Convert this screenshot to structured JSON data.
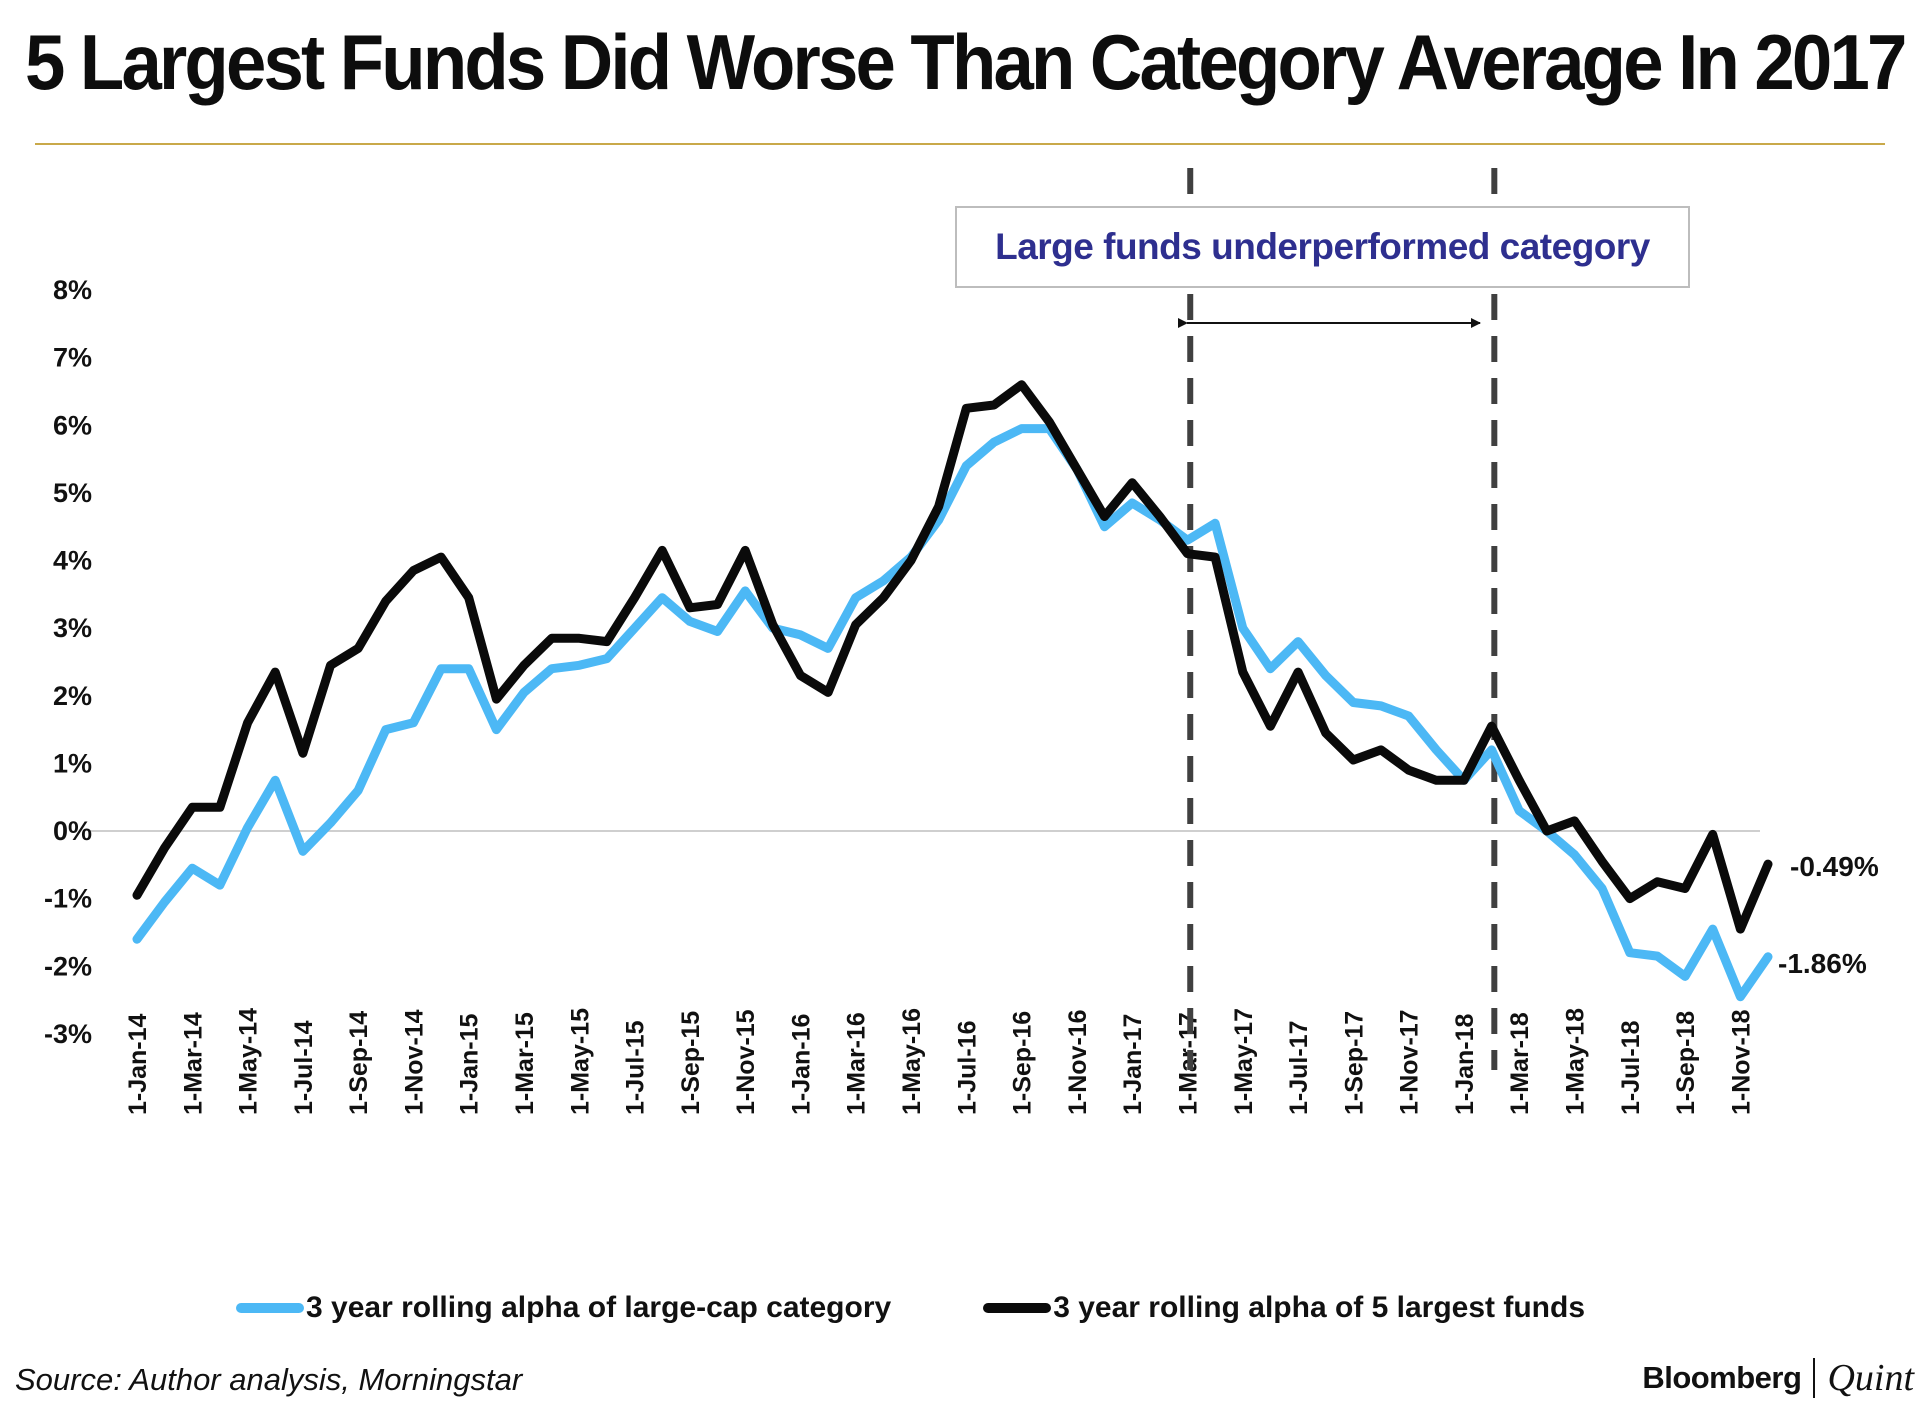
{
  "title": "5 Largest Funds Did Worse Than Category Average In 2017",
  "annotation": "Large funds underperformed category",
  "source": "Source: Author analysis, Morningstar",
  "brand": {
    "name": "Bloomberg",
    "partner": "Quint"
  },
  "colors": {
    "category": "#4cb8f5",
    "largest": "#0a0a0a",
    "annotation": "#2e2f8f",
    "rule": "#c9a94a",
    "divider": "#404040"
  },
  "chart_data": {
    "type": "line",
    "title": "5 Largest Funds Did Worse Than Category Average In 2017",
    "xlabel": "",
    "ylabel": "",
    "ylim": [
      -0.03,
      0.08
    ],
    "y_ticks": [
      "8%",
      "7%",
      "6%",
      "5%",
      "4%",
      "3%",
      "2%",
      "1%",
      "0%",
      "-1%",
      "-2%",
      "-3%"
    ],
    "y_tick_values": [
      0.08,
      0.07,
      0.06,
      0.05,
      0.04,
      0.03,
      0.02,
      0.01,
      0.0,
      -0.01,
      -0.02,
      -0.03
    ],
    "x_tick_labels": [
      "1-Jan-14",
      "1-Mar-14",
      "1-May-14",
      "1-Jul-14",
      "1-Sep-14",
      "1-Nov-14",
      "1-Jan-15",
      "1-Mar-15",
      "1-May-15",
      "1-Jul-15",
      "1-Sep-15",
      "1-Nov-15",
      "1-Jan-16",
      "1-Mar-16",
      "1-May-16",
      "1-Jul-16",
      "1-Sep-16",
      "1-Nov-16",
      "1-Jan-17",
      "1-Mar-17",
      "1-May-17",
      "1-Jul-17",
      "1-Sep-17",
      "1-Nov-17",
      "1-Jan-18",
      "1-Mar-18",
      "1-May-18",
      "1-Jul-18",
      "1-Sep-18",
      "1-Nov-18"
    ],
    "x_tick_month_index": [
      0,
      2,
      4,
      6,
      8,
      10,
      12,
      14,
      16,
      18,
      20,
      22,
      24,
      26,
      28,
      30,
      32,
      34,
      36,
      38,
      40,
      42,
      44,
      46,
      48,
      50,
      52,
      54,
      56,
      58
    ],
    "x_range_months": [
      0,
      59
    ],
    "x_month_labels": [
      "1-Jan-14",
      "1-Feb-14",
      "1-Mar-14",
      "1-Apr-14",
      "1-May-14",
      "1-Jun-14",
      "1-Jul-14",
      "1-Aug-14",
      "1-Sep-14",
      "1-Oct-14",
      "1-Nov-14",
      "1-Dec-14",
      "1-Jan-15",
      "1-Feb-15",
      "1-Mar-15",
      "1-Apr-15",
      "1-May-15",
      "1-Jun-15",
      "1-Jul-15",
      "1-Aug-15",
      "1-Sep-15",
      "1-Oct-15",
      "1-Nov-15",
      "1-Dec-15",
      "1-Jan-16",
      "1-Feb-16",
      "1-Mar-16",
      "1-Apr-16",
      "1-May-16",
      "1-Jun-16",
      "1-Jul-16",
      "1-Aug-16",
      "1-Sep-16",
      "1-Oct-16",
      "1-Nov-16",
      "1-Dec-16",
      "1-Jan-17",
      "1-Feb-17",
      "1-Mar-17",
      "1-Apr-17",
      "1-May-17",
      "1-Jun-17",
      "1-Jul-17",
      "1-Aug-17",
      "1-Sep-17",
      "1-Oct-17",
      "1-Nov-17",
      "1-Dec-17",
      "1-Jan-18",
      "1-Feb-18",
      "1-Mar-18",
      "1-Apr-18",
      "1-May-18",
      "1-Jun-18",
      "1-Jul-18",
      "1-Aug-18",
      "1-Sep-18",
      "1-Oct-18",
      "1-Nov-18",
      "1-Dec-18"
    ],
    "series": [
      {
        "name": "3 year rolling alpha of large-cap category",
        "color": "#4cb8f5",
        "end_label": "-1.86%",
        "values": [
          -1.6,
          -1.05,
          -0.55,
          -0.8,
          0.05,
          0.75,
          -0.3,
          0.12,
          0.6,
          1.5,
          1.6,
          2.4,
          2.4,
          1.5,
          2.05,
          2.4,
          2.45,
          2.55,
          3.0,
          3.45,
          3.1,
          2.95,
          3.55,
          3.0,
          2.9,
          2.7,
          3.45,
          3.7,
          4.05,
          4.6,
          5.4,
          5.75,
          5.95,
          5.95,
          5.35,
          4.5,
          4.85,
          4.6,
          4.3,
          4.55,
          3.0,
          2.4,
          2.8,
          2.3,
          1.9,
          1.85,
          1.7,
          1.2,
          0.75,
          1.2,
          0.3,
          0.0,
          -0.35,
          -0.85,
          -1.8,
          -1.85,
          -2.15,
          -1.45,
          -2.45,
          -1.86
        ]
      },
      {
        "name": "3 year rolling alpha of 5 largest funds",
        "color": "#0a0a0a",
        "end_label": "-0.49%",
        "values": [
          -0.95,
          -0.25,
          0.35,
          0.35,
          1.6,
          2.35,
          1.15,
          2.45,
          2.7,
          3.4,
          3.85,
          4.05,
          3.45,
          1.95,
          2.45,
          2.85,
          2.85,
          2.8,
          3.45,
          4.15,
          3.3,
          3.35,
          4.15,
          3.05,
          2.3,
          2.05,
          3.05,
          3.45,
          4.0,
          4.8,
          6.25,
          6.3,
          6.6,
          6.05,
          5.35,
          4.65,
          5.15,
          4.65,
          4.1,
          4.05,
          2.35,
          1.55,
          2.35,
          1.45,
          1.05,
          1.2,
          0.9,
          0.75,
          0.75,
          1.55,
          0.75,
          0.0,
          0.15,
          -0.45,
          -1.0,
          -0.75,
          -0.85,
          -0.05,
          -1.45,
          -0.49
        ]
      }
    ],
    "markers": [
      {
        "kind": "dashed-vline",
        "month_index": 38.1
      },
      {
        "kind": "dashed-vline",
        "month_index": 49.1
      }
    ],
    "zero_line": true,
    "legend_position": "bottom"
  }
}
